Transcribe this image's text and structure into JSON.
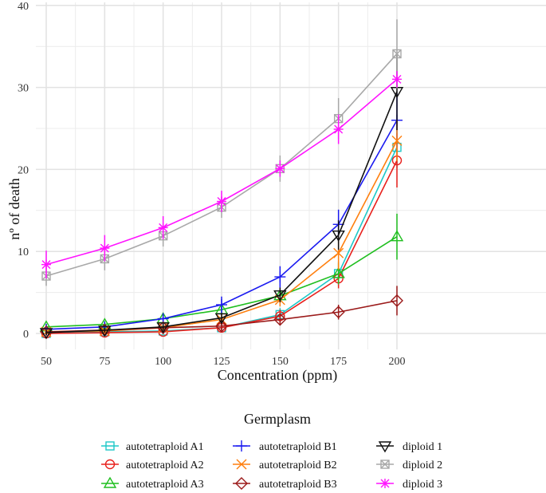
{
  "chart_data": {
    "type": "line",
    "title": "",
    "xlabel": "Concentration (ppm)",
    "ylabel": "nº of death",
    "x": [
      50,
      75,
      100,
      125,
      150,
      175,
      200
    ],
    "xlim": [
      45,
      205
    ],
    "ylim": [
      -2,
      40
    ],
    "yticks": [
      0,
      10,
      20,
      30,
      40
    ],
    "grid": true,
    "legend": {
      "title": "Germplasm",
      "placement": "bottom"
    },
    "series": [
      {
        "name": "autotetraploid A1",
        "color": "#1fc8c8",
        "symbol": "square",
        "values": [
          0,
          0.2,
          0.3,
          0.7,
          2.3,
          7.3,
          22.7
        ],
        "err": [
          0.3,
          0.3,
          0.4,
          0.5,
          0.8,
          1.5,
          2.5
        ]
      },
      {
        "name": "autotetraploid A2",
        "color": "#e8201c",
        "symbol": "circle",
        "values": [
          0,
          0.1,
          0.2,
          0.7,
          2.1,
          6.7,
          21.1
        ],
        "err": [
          0.3,
          0.3,
          0.3,
          0.5,
          0.8,
          1.2,
          3.3
        ]
      },
      {
        "name": "autotetraploid A3",
        "color": "#1fbf1f",
        "symbol": "triangle",
        "values": [
          0.8,
          1.1,
          1.8,
          2.9,
          4.6,
          7.3,
          11.8
        ],
        "err": [
          0.3,
          0.4,
          0.5,
          0.6,
          0.8,
          1.3,
          2.8
        ]
      },
      {
        "name": "autotetraploid B1",
        "color": "#1a1af0",
        "symbol": "plus",
        "values": [
          0.5,
          0.8,
          1.8,
          3.5,
          6.9,
          13.3,
          26.0
        ],
        "err": [
          0.4,
          0.5,
          0.6,
          1.0,
          1.3,
          1.8,
          3.3
        ]
      },
      {
        "name": "autotetraploid B2",
        "color": "#ff7f0e",
        "symbol": "cross",
        "values": [
          0.2,
          0.3,
          0.7,
          1.7,
          4.1,
          9.8,
          23.5
        ],
        "err": [
          0.3,
          0.3,
          0.5,
          0.6,
          0.8,
          2.0,
          2.5
        ]
      },
      {
        "name": "autotetraploid B3",
        "color": "#9b1a1a",
        "symbol": "diamond",
        "values": [
          0.2,
          0.4,
          0.7,
          0.9,
          1.7,
          2.6,
          4.0
        ],
        "err": [
          0.3,
          0.3,
          0.4,
          0.5,
          0.6,
          0.9,
          1.8
        ]
      },
      {
        "name": "diploid 1",
        "color": "#111111",
        "symbol": "triangle-down",
        "values": [
          0.1,
          0.4,
          0.8,
          1.9,
          4.7,
          12.0,
          29.5
        ],
        "err": [
          0.3,
          0.3,
          0.4,
          0.6,
          0.9,
          1.8,
          4.7
        ]
      },
      {
        "name": "diploid 2",
        "color": "#a8a8a8",
        "symbol": "square-x",
        "values": [
          7.0,
          9.1,
          11.9,
          15.4,
          20.1,
          26.2,
          34.1
        ],
        "err": [
          1.2,
          1.4,
          1.3,
          1.3,
          1.6,
          2.5,
          4.2
        ]
      },
      {
        "name": "diploid 3",
        "color": "#ff14ff",
        "symbol": "star",
        "values": [
          8.4,
          10.4,
          12.9,
          16.1,
          20.1,
          24.9,
          31.0
        ],
        "err": [
          1.7,
          1.6,
          1.4,
          1.3,
          1.0,
          1.8,
          1.0
        ]
      }
    ]
  }
}
